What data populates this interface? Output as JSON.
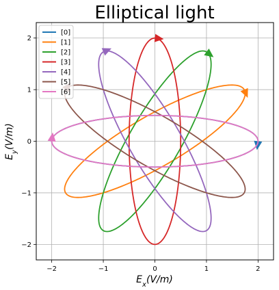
{
  "chart_data": {
    "type": "line",
    "title": "Elliptical light",
    "xlabel": "E_x(V/m)",
    "ylabel": "E_y(V/m)",
    "xlim": [
      -2.3,
      2.3
    ],
    "ylim": [
      -2.3,
      2.3
    ],
    "xticks": [
      -2,
      -1,
      0,
      1,
      2
    ],
    "yticks": [
      -2,
      -1,
      0,
      1,
      2
    ],
    "xtick_labels": [
      "−2",
      "−1",
      "0",
      "1",
      "2"
    ],
    "ytick_labels": [
      "−2",
      "−1",
      "0",
      "1",
      "2"
    ],
    "grid": true,
    "legend_position": "upper-left",
    "ellipse": {
      "semi_major": 2.0,
      "semi_minor": 0.5
    },
    "series": [
      {
        "name": "[0]",
        "color": "#1f77b4",
        "rotation_deg": 0
      },
      {
        "name": "[1]",
        "color": "#ff7f0e",
        "rotation_deg": 30
      },
      {
        "name": "[2]",
        "color": "#2ca02c",
        "rotation_deg": 60
      },
      {
        "name": "[3]",
        "color": "#d62728",
        "rotation_deg": 90
      },
      {
        "name": "[4]",
        "color": "#9467bd",
        "rotation_deg": 120
      },
      {
        "name": "[5]",
        "color": "#8c564b",
        "rotation_deg": 150
      },
      {
        "name": "[6]",
        "color": "#e377c2",
        "rotation_deg": 180
      }
    ]
  }
}
